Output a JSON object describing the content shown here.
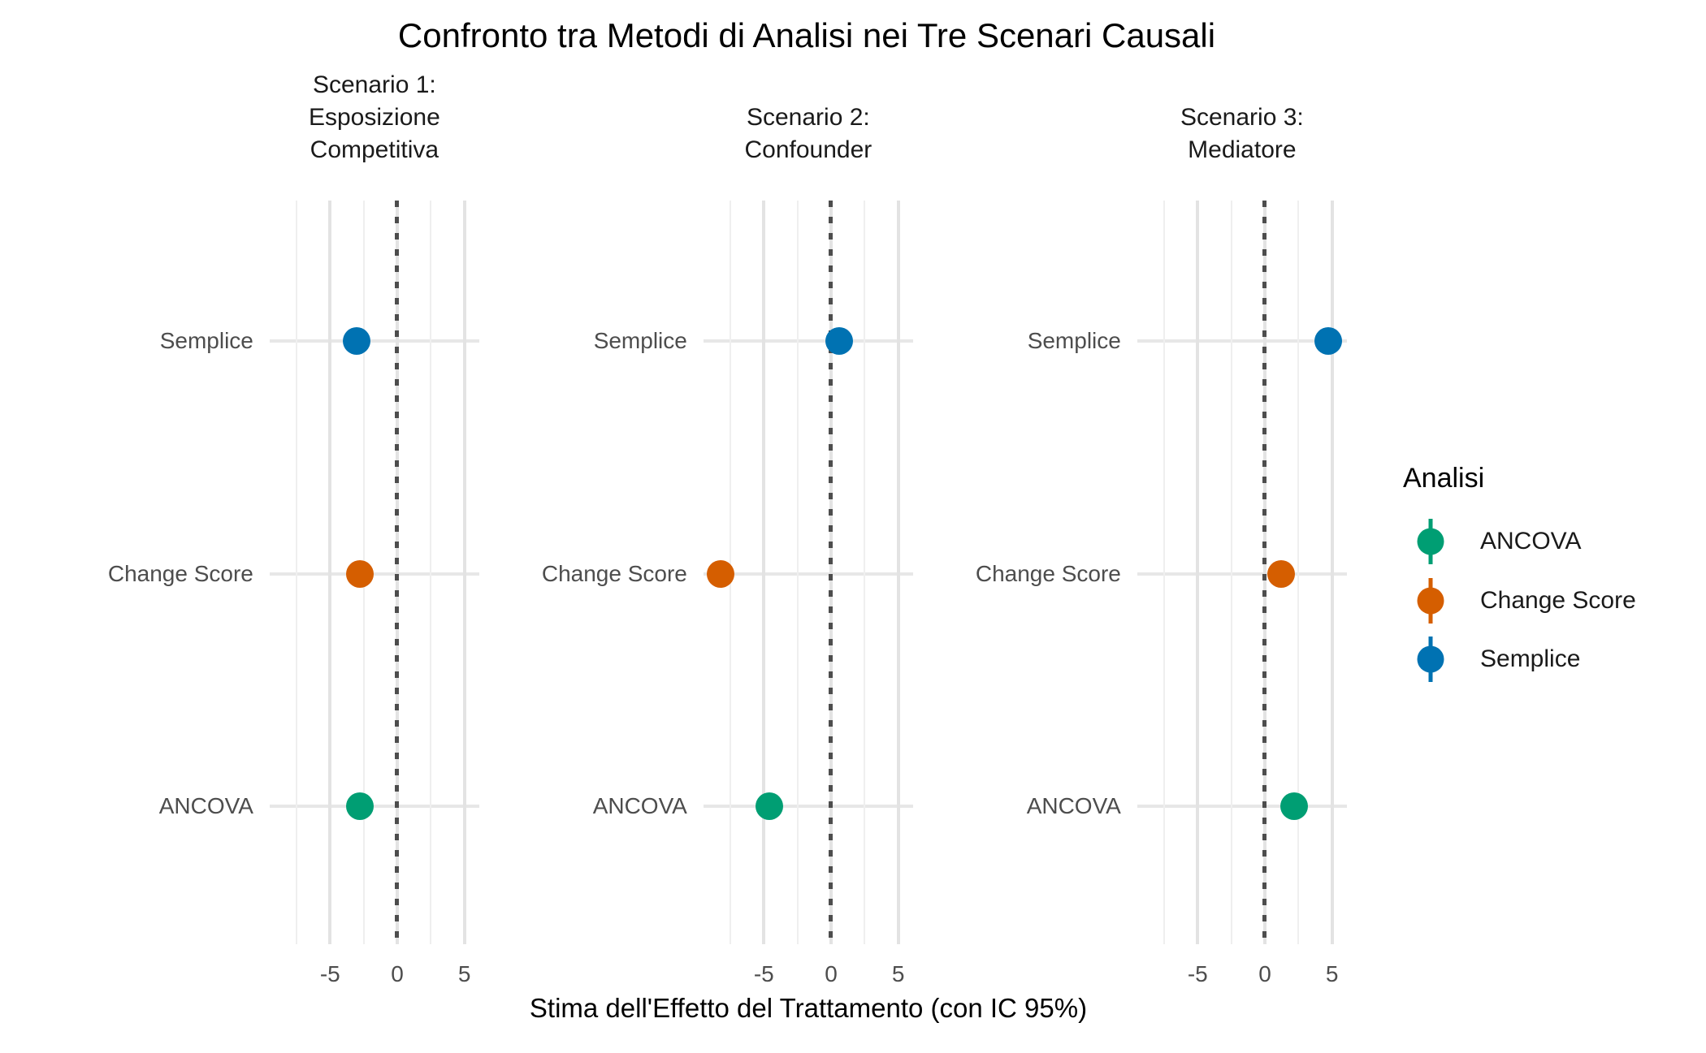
{
  "title": "Confronto tra Metodi di Analisi nei Tre Scenari Causali",
  "x_axis_title": "Stima dell'Effetto del Trattamento (con IC 95%)",
  "legend": {
    "title": "Analisi",
    "items": [
      {
        "label": "ANCOVA",
        "color": "#009E73"
      },
      {
        "label": "Change Score",
        "color": "#D55E00"
      },
      {
        "label": "Semplice",
        "color": "#0072B2"
      }
    ]
  },
  "chart_data": {
    "type": "scatter",
    "subtype": "faceted-dotplot-pointrange",
    "title": "Confronto tra Metodi di Analisi nei Tre Scenari Causali",
    "xlabel": "Stima dell'Effetto del Trattamento (con IC 95%)",
    "x_ticks": [
      -5,
      0,
      5
    ],
    "x_tick_labels": [
      "-5",
      "0",
      "5"
    ],
    "x_domain": [
      -9.5,
      6.1
    ],
    "reference_line_x": 0,
    "grid": {
      "major_x": [
        -5,
        0,
        5
      ],
      "minor_x": [
        -7.5,
        -2.5,
        2.5
      ],
      "horizontal_per_category": true
    },
    "y_categories_top_to_bottom": [
      "Semplice",
      "Change Score",
      "ANCOVA"
    ],
    "series_colors": {
      "Semplice": "#0072B2",
      "Change Score": "#D55E00",
      "ANCOVA": "#009E73"
    },
    "facets": [
      {
        "strip_lines": [
          "Scenario 1:",
          "Esposizione",
          "Competitiva"
        ],
        "estimates": {
          "Semplice": -3.0,
          "Change Score": -2.8,
          "ANCOVA": -2.8
        }
      },
      {
        "strip_lines": [
          "Scenario 2:",
          "Confounder"
        ],
        "estimates": {
          "Semplice": 0.6,
          "Change Score": -8.2,
          "ANCOVA": -4.6
        }
      },
      {
        "strip_lines": [
          "Scenario 3:",
          "Mediatore"
        ],
        "estimates": {
          "Semplice": 4.7,
          "Change Score": 1.2,
          "ANCOVA": 2.2
        }
      }
    ],
    "legend_title": "Analisi",
    "legend_position": "right"
  }
}
